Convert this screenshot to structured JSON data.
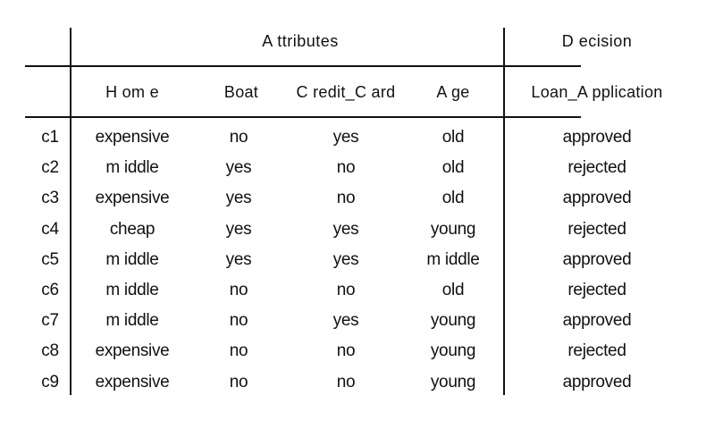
{
  "table": {
    "group_headers": {
      "attributes": "A ttributes",
      "decision": "D ecision"
    },
    "columns": [
      "H om e",
      "Boat",
      "C redit_C ard",
      "A ge",
      "Loan_A pplication"
    ],
    "rows": [
      {
        "id": "c1",
        "cells": [
          "expensive",
          "no",
          "yes",
          "old",
          "approved"
        ]
      },
      {
        "id": "c2",
        "cells": [
          "m iddle",
          "yes",
          "no",
          "old",
          "rejected"
        ]
      },
      {
        "id": "c3",
        "cells": [
          "expensive",
          "yes",
          "no",
          "old",
          "approved"
        ]
      },
      {
        "id": "c4",
        "cells": [
          "cheap",
          "yes",
          "yes",
          "young",
          "rejected"
        ]
      },
      {
        "id": "c5",
        "cells": [
          "m iddle",
          "yes",
          "yes",
          "m iddle",
          "approved"
        ]
      },
      {
        "id": "c6",
        "cells": [
          "m iddle",
          "no",
          "no",
          "old",
          "rejected"
        ]
      },
      {
        "id": "c7",
        "cells": [
          "m iddle",
          "no",
          "yes",
          "young",
          "approved"
        ]
      },
      {
        "id": "c8",
        "cells": [
          "expensive",
          "no",
          "no",
          "young",
          "rejected"
        ]
      },
      {
        "id": "c9",
        "cells": [
          "expensive",
          "no",
          "no",
          "young",
          "approved"
        ]
      }
    ]
  }
}
